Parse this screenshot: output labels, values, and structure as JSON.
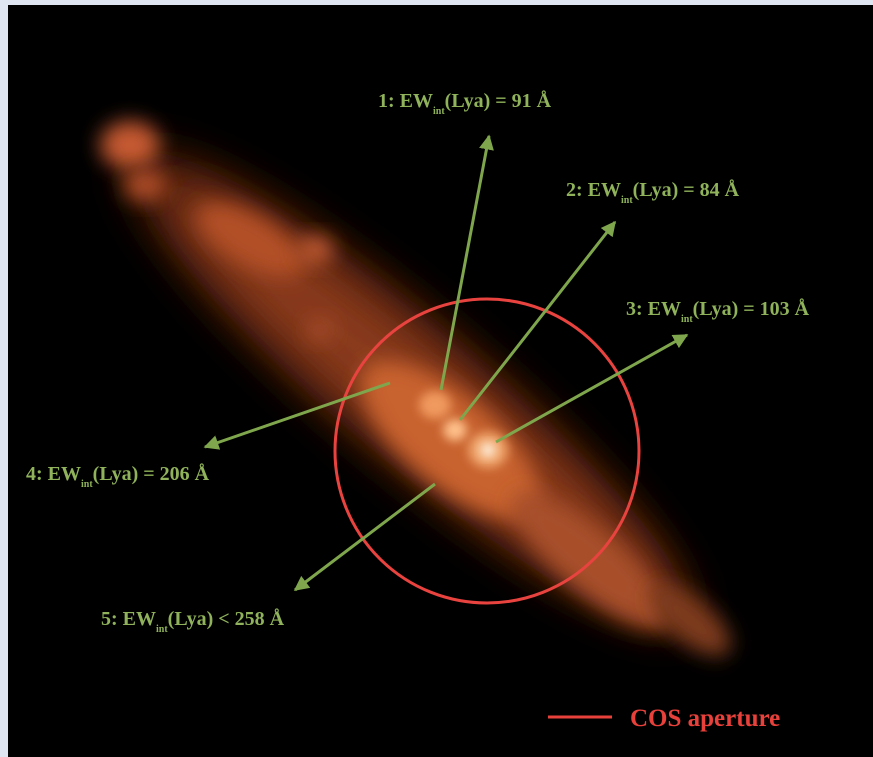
{
  "annotations": [
    {
      "prefix": "1: EW",
      "subscript": "int",
      "suffix": "(Lya) = 91 Å"
    },
    {
      "prefix": "2: EW",
      "subscript": "int",
      "suffix": "(Lya) = 84 Å"
    },
    {
      "prefix": "3: EW",
      "subscript": "int",
      "suffix": "(Lya) = 103 Å"
    },
    {
      "prefix": "4: EW",
      "subscript": "int",
      "suffix": "(Lya) = 206 Å"
    },
    {
      "prefix": "5: EW",
      "subscript": "int",
      "suffix": "(Lya) < 258 Å"
    }
  ],
  "legend": {
    "label": "COS aperture"
  }
}
